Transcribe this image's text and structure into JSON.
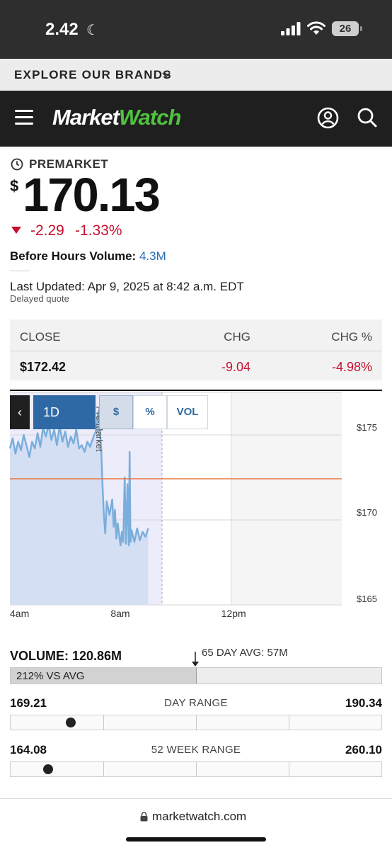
{
  "status_bar": {
    "time": "2.42",
    "battery": "26"
  },
  "brands_bar": {
    "label": "EXPLORE OUR BRANDS"
  },
  "header": {
    "logo_part1": "Market",
    "logo_part2": "Watch"
  },
  "quote": {
    "session_label": "PREMARKET",
    "currency_symbol": "$",
    "price": "170.13",
    "change": "-2.29",
    "change_percent": "-1.33%",
    "volume_label": "Before Hours Volume:",
    "volume_value": "4.3M",
    "last_updated": "Last Updated: Apr 9, 2025 at 8:42 a.m. EDT",
    "delayed_note": "Delayed quote"
  },
  "close_table": {
    "headers": [
      "CLOSE",
      "CHG",
      "CHG %"
    ],
    "values": [
      "$172.42",
      "-9.04",
      "-4.98%"
    ]
  },
  "chart_controls": {
    "back_glyph": "‹",
    "range": "1D",
    "toggles": [
      "$",
      "%",
      "VOL"
    ],
    "active_toggle": "$"
  },
  "chart_data": {
    "type": "line",
    "series": [
      {
        "values": [
          [
            4.0,
            174.2
          ],
          [
            4.1,
            174.8
          ],
          [
            4.2,
            173.9
          ],
          [
            4.3,
            174.6
          ],
          [
            4.4,
            174.1
          ],
          [
            4.5,
            175.0
          ],
          [
            4.6,
            174.4
          ],
          [
            4.7,
            173.7
          ],
          [
            4.8,
            174.6
          ],
          [
            4.9,
            174.2
          ],
          [
            5.0,
            175.1
          ],
          [
            5.1,
            174.3
          ],
          [
            5.2,
            175.4
          ],
          [
            5.3,
            174.9
          ],
          [
            5.4,
            175.6
          ],
          [
            5.5,
            174.7
          ],
          [
            5.6,
            175.3
          ],
          [
            5.7,
            174.4
          ],
          [
            5.8,
            175.5
          ],
          [
            5.9,
            174.6
          ],
          [
            6.0,
            175.2
          ],
          [
            6.1,
            174.3
          ],
          [
            6.2,
            174.9
          ],
          [
            6.3,
            174.5
          ],
          [
            6.4,
            175.3
          ],
          [
            6.5,
            174.2
          ],
          [
            6.6,
            174.4
          ],
          [
            6.7,
            174.0
          ],
          [
            6.8,
            174.6
          ],
          [
            6.9,
            174.3
          ],
          [
            7.0,
            174.8
          ],
          [
            7.1,
            175.2
          ],
          [
            7.2,
            176.4
          ],
          [
            7.25,
            175.3
          ],
          [
            7.3,
            174.2
          ],
          [
            7.35,
            172.0
          ],
          [
            7.4,
            170.2
          ],
          [
            7.45,
            169.2
          ],
          [
            7.5,
            171.1
          ],
          [
            7.6,
            170.3
          ],
          [
            7.7,
            171.2
          ],
          [
            7.75,
            169.6
          ],
          [
            7.8,
            170.6
          ],
          [
            7.85,
            168.9
          ],
          [
            7.9,
            169.8
          ],
          [
            8.0,
            168.5
          ],
          [
            8.05,
            169.3
          ],
          [
            8.1,
            168.7
          ],
          [
            8.15,
            172.5
          ],
          [
            8.2,
            168.6
          ],
          [
            8.25,
            172.1
          ],
          [
            8.3,
            168.5
          ],
          [
            8.33,
            174.0
          ],
          [
            8.36,
            168.7
          ],
          [
            8.4,
            169.4
          ],
          [
            8.5,
            168.7
          ],
          [
            8.6,
            169.5
          ],
          [
            8.7,
            168.8
          ],
          [
            8.8,
            169.3
          ],
          [
            8.9,
            169.0
          ],
          [
            9.0,
            169.5
          ]
        ]
      }
    ],
    "x_ticks": [
      "4am",
      "8am",
      "12pm"
    ],
    "y_ticks": [
      "$175",
      "$170",
      "$165"
    ],
    "annotation": "Pre-Market",
    "previous_close": 172.42,
    "xlim": [
      4.0,
      16.0
    ],
    "ylim": [
      165,
      177.5
    ],
    "grid": true,
    "colors": {
      "line": "#7aaedc",
      "fill": "#d3def3",
      "premarket_shade": "#ececfb",
      "prev_close": "#e8733d",
      "afterhours_shade": "#f5f5f5"
    }
  },
  "stats": {
    "volume_label": "VOLUME: 120.86M",
    "avg_label": "65 DAY AVG: 57M",
    "vs_avg": "212% VS AVG",
    "vs_avg_fraction": 0.5,
    "day_range": {
      "title": "DAY RANGE",
      "low": "169.21",
      "high": "190.34",
      "position": 0.163
    },
    "week52_range": {
      "title": "52 WEEK RANGE",
      "low": "164.08",
      "high": "260.10",
      "position": 0.101
    }
  },
  "footer": {
    "url": "marketwatch.com"
  }
}
